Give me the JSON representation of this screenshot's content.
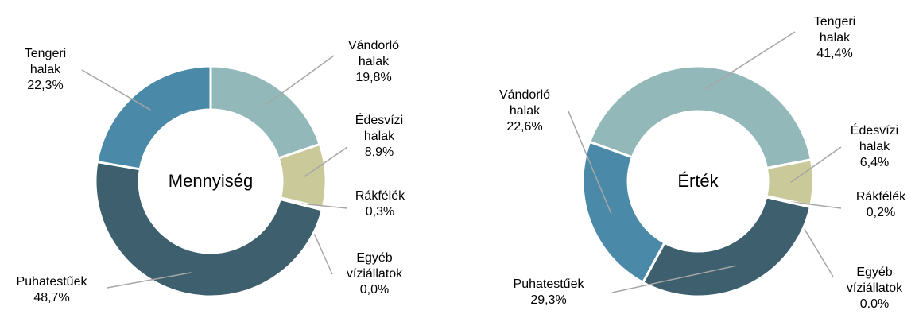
{
  "chart_data": [
    {
      "type": "pie",
      "title": "Mennyiség",
      "categories": [
        "Vándorló halak",
        "Édesvízi halak",
        "Rákfélék",
        "Egyéb víziállatok",
        "Puhatestűek",
        "Tengeri halak"
      ],
      "values": [
        19.8,
        8.9,
        0.3,
        0.0,
        48.7,
        22.3
      ],
      "value_labels": [
        "19,8%",
        "8,9%",
        "0,3%",
        "0,0%",
        "48,7%",
        "22,3%"
      ],
      "colors": [
        "#93b8b9",
        "#c9c99a",
        "#b7b78a",
        "#6f8f8f",
        "#3d5f6e",
        "#4a8aa8"
      ]
    },
    {
      "type": "pie",
      "title": "Érték",
      "categories": [
        "Tengeri halak",
        "Édesvízi halak",
        "Rákfélék",
        "Egyéb víziállatok",
        "Puhatestűek",
        "Vándorló halak"
      ],
      "values": [
        41.4,
        6.4,
        0.2,
        0.0,
        29.3,
        22.6
      ],
      "value_labels": [
        "41,4%",
        "6,4%",
        "0,2%",
        "0.0%",
        "29,3%",
        "22,6%"
      ],
      "colors": [
        "#93b8b9",
        "#c9c99a",
        "#b7b78a",
        "#6f8f8f",
        "#3d5f6e",
        "#4a8aa8"
      ]
    }
  ]
}
